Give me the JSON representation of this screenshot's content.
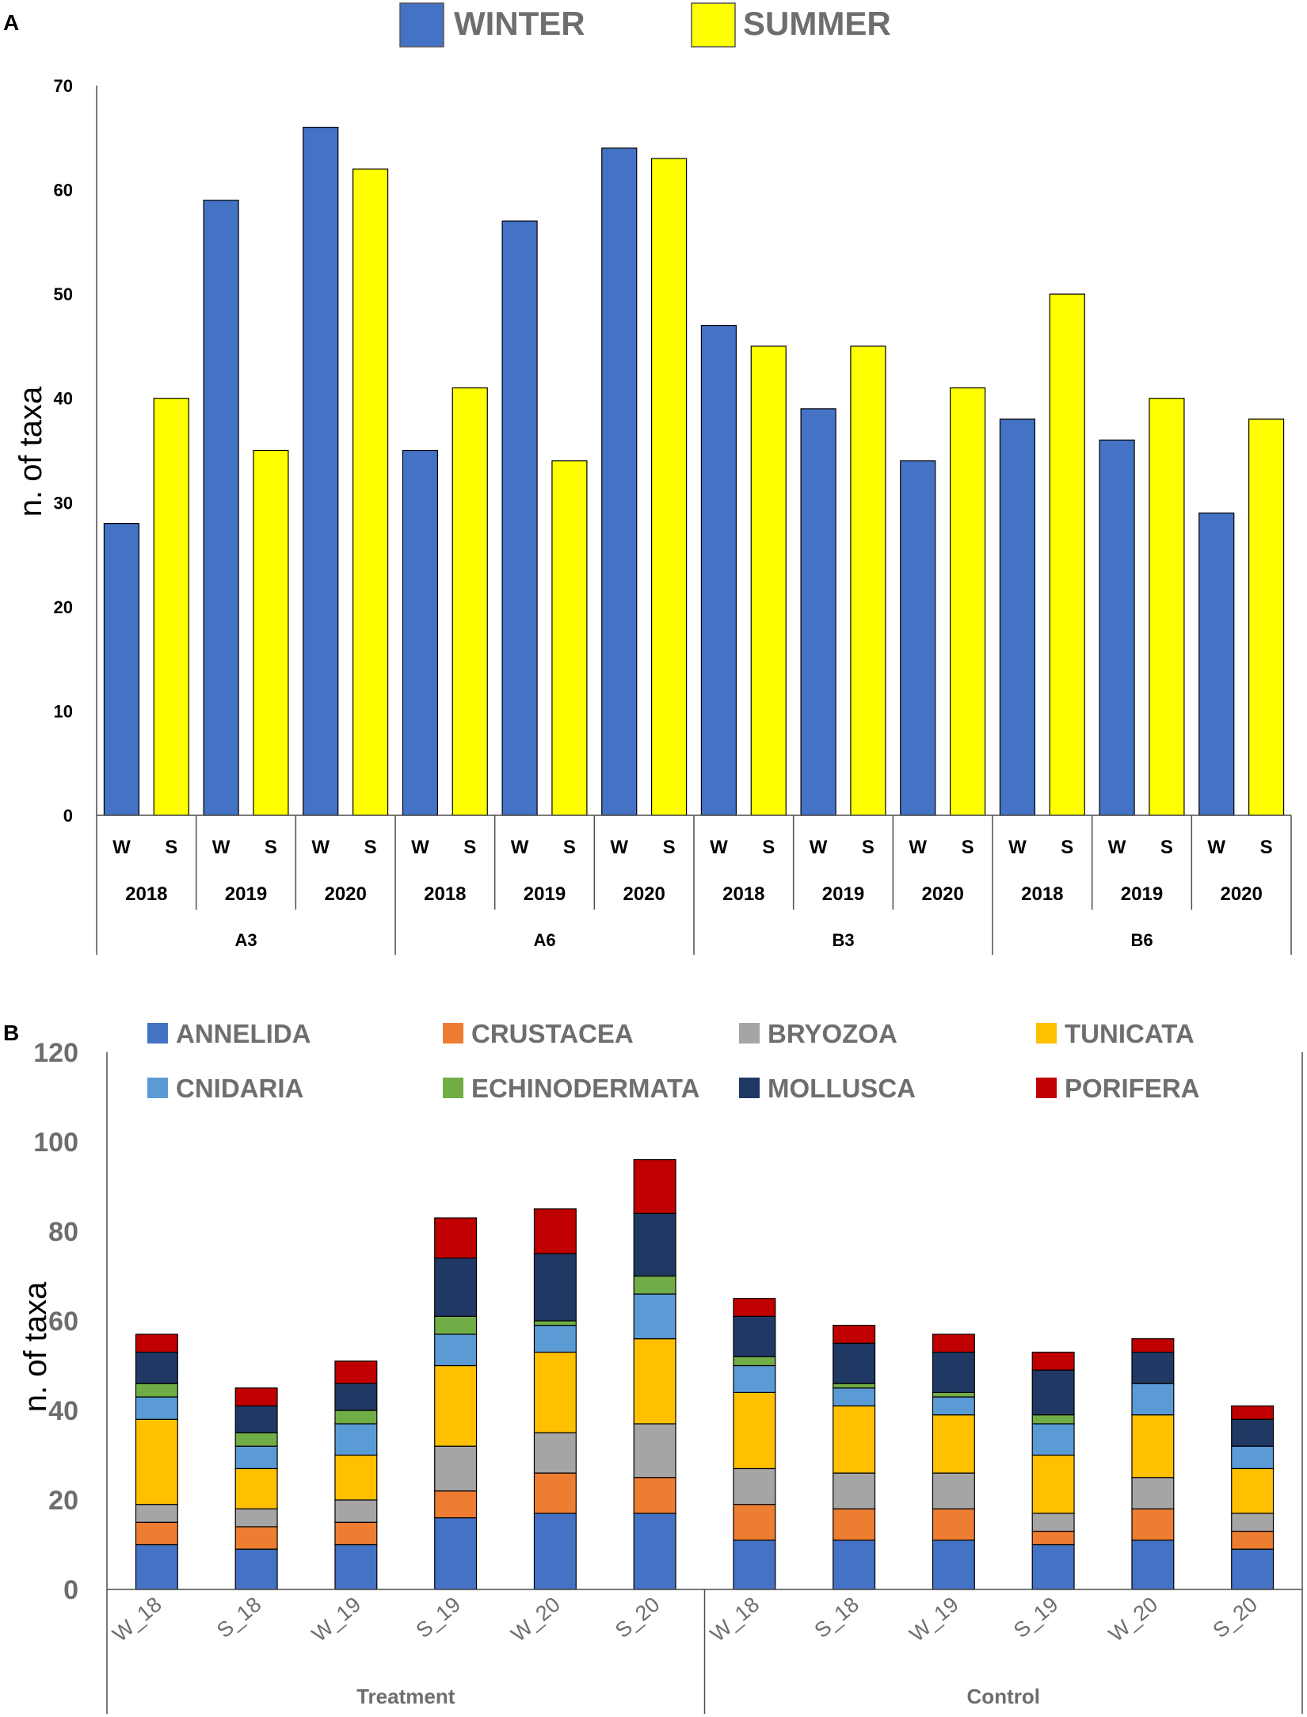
{
  "chart_data": [
    {
      "panel": "A",
      "type": "bar",
      "legend": [
        {
          "name": "WINTER",
          "color": "#4472C4"
        },
        {
          "name": "SUMMER",
          "color": "#FFFF00"
        }
      ],
      "ylabel": "n. of taxa",
      "ylim": [
        0,
        70
      ],
      "yticks": [
        0,
        10,
        20,
        30,
        40,
        50,
        60,
        70
      ],
      "season_labels": [
        "W",
        "S"
      ],
      "sites": [
        {
          "site": "A3",
          "years": [
            {
              "year": "2018",
              "winter": 28,
              "summer": 40
            },
            {
              "year": "2019",
              "winter": 59,
              "summer": 35
            },
            {
              "year": "2020",
              "winter": 66,
              "summer": 62
            }
          ]
        },
        {
          "site": "A6",
          "years": [
            {
              "year": "2018",
              "winter": 35,
              "summer": 41
            },
            {
              "year": "2019",
              "winter": 57,
              "summer": 34
            },
            {
              "year": "2020",
              "winter": 64,
              "summer": 63
            }
          ]
        },
        {
          "site": "B3",
          "years": [
            {
              "year": "2018",
              "winter": 47,
              "summer": 45
            },
            {
              "year": "2019",
              "winter": 39,
              "summer": 45
            },
            {
              "year": "2020",
              "winter": 34,
              "summer": 41
            }
          ]
        },
        {
          "site": "B6",
          "years": [
            {
              "year": "2018",
              "winter": 38,
              "summer": 50
            },
            {
              "year": "2019",
              "winter": 36,
              "summer": 40
            },
            {
              "year": "2020",
              "winter": 29,
              "summer": 38
            }
          ]
        }
      ]
    },
    {
      "panel": "B",
      "type": "bar",
      "stacked": true,
      "ylabel": "n. of taxa",
      "ylim": [
        0,
        120
      ],
      "yticks": [
        0,
        20,
        40,
        60,
        80,
        100,
        120
      ],
      "groups": [
        {
          "name": "Treatment",
          "categories": [
            "W_18",
            "S_18",
            "W_19",
            "S_19",
            "W_20",
            "S_20"
          ]
        },
        {
          "name": "Control",
          "categories": [
            "W_18",
            "S_18",
            "W_19",
            "S_19",
            "W_20",
            "S_20"
          ]
        }
      ],
      "series": [
        {
          "name": "ANNELIDA",
          "color": "#4472C4",
          "values": [
            10,
            9,
            10,
            16,
            17,
            17,
            11,
            11,
            11,
            10,
            11,
            9
          ]
        },
        {
          "name": "CRUSTACEA",
          "color": "#ED7D31",
          "values": [
            5,
            5,
            5,
            6,
            9,
            8,
            8,
            7,
            7,
            3,
            7,
            4
          ]
        },
        {
          "name": "BRYOZOA",
          "color": "#A5A5A5",
          "values": [
            4,
            4,
            5,
            10,
            9,
            12,
            8,
            8,
            8,
            4,
            7,
            4
          ]
        },
        {
          "name": "TUNICATA",
          "color": "#FFC000",
          "values": [
            19,
            9,
            10,
            18,
            18,
            19,
            17,
            15,
            13,
            13,
            14,
            10
          ]
        },
        {
          "name": "CNIDARIA",
          "color": "#5B9BD5",
          "values": [
            5,
            5,
            7,
            7,
            6,
            10,
            6,
            4,
            4,
            7,
            7,
            5
          ]
        },
        {
          "name": "ECHINODERMATA",
          "color": "#70AD47",
          "values": [
            3,
            3,
            3,
            4,
            1,
            4,
            2,
            1,
            1,
            2,
            0,
            0
          ]
        },
        {
          "name": "MOLLUSCA",
          "color": "#203864",
          "values": [
            7,
            6,
            6,
            13,
            15,
            14,
            9,
            9,
            9,
            10,
            7,
            6
          ]
        },
        {
          "name": "PORIFERA",
          "color": "#C00000",
          "values": [
            4,
            4,
            5,
            9,
            10,
            12,
            4,
            4,
            4,
            4,
            3,
            3
          ]
        }
      ]
    }
  ],
  "panel_labels": [
    "A",
    "B"
  ]
}
